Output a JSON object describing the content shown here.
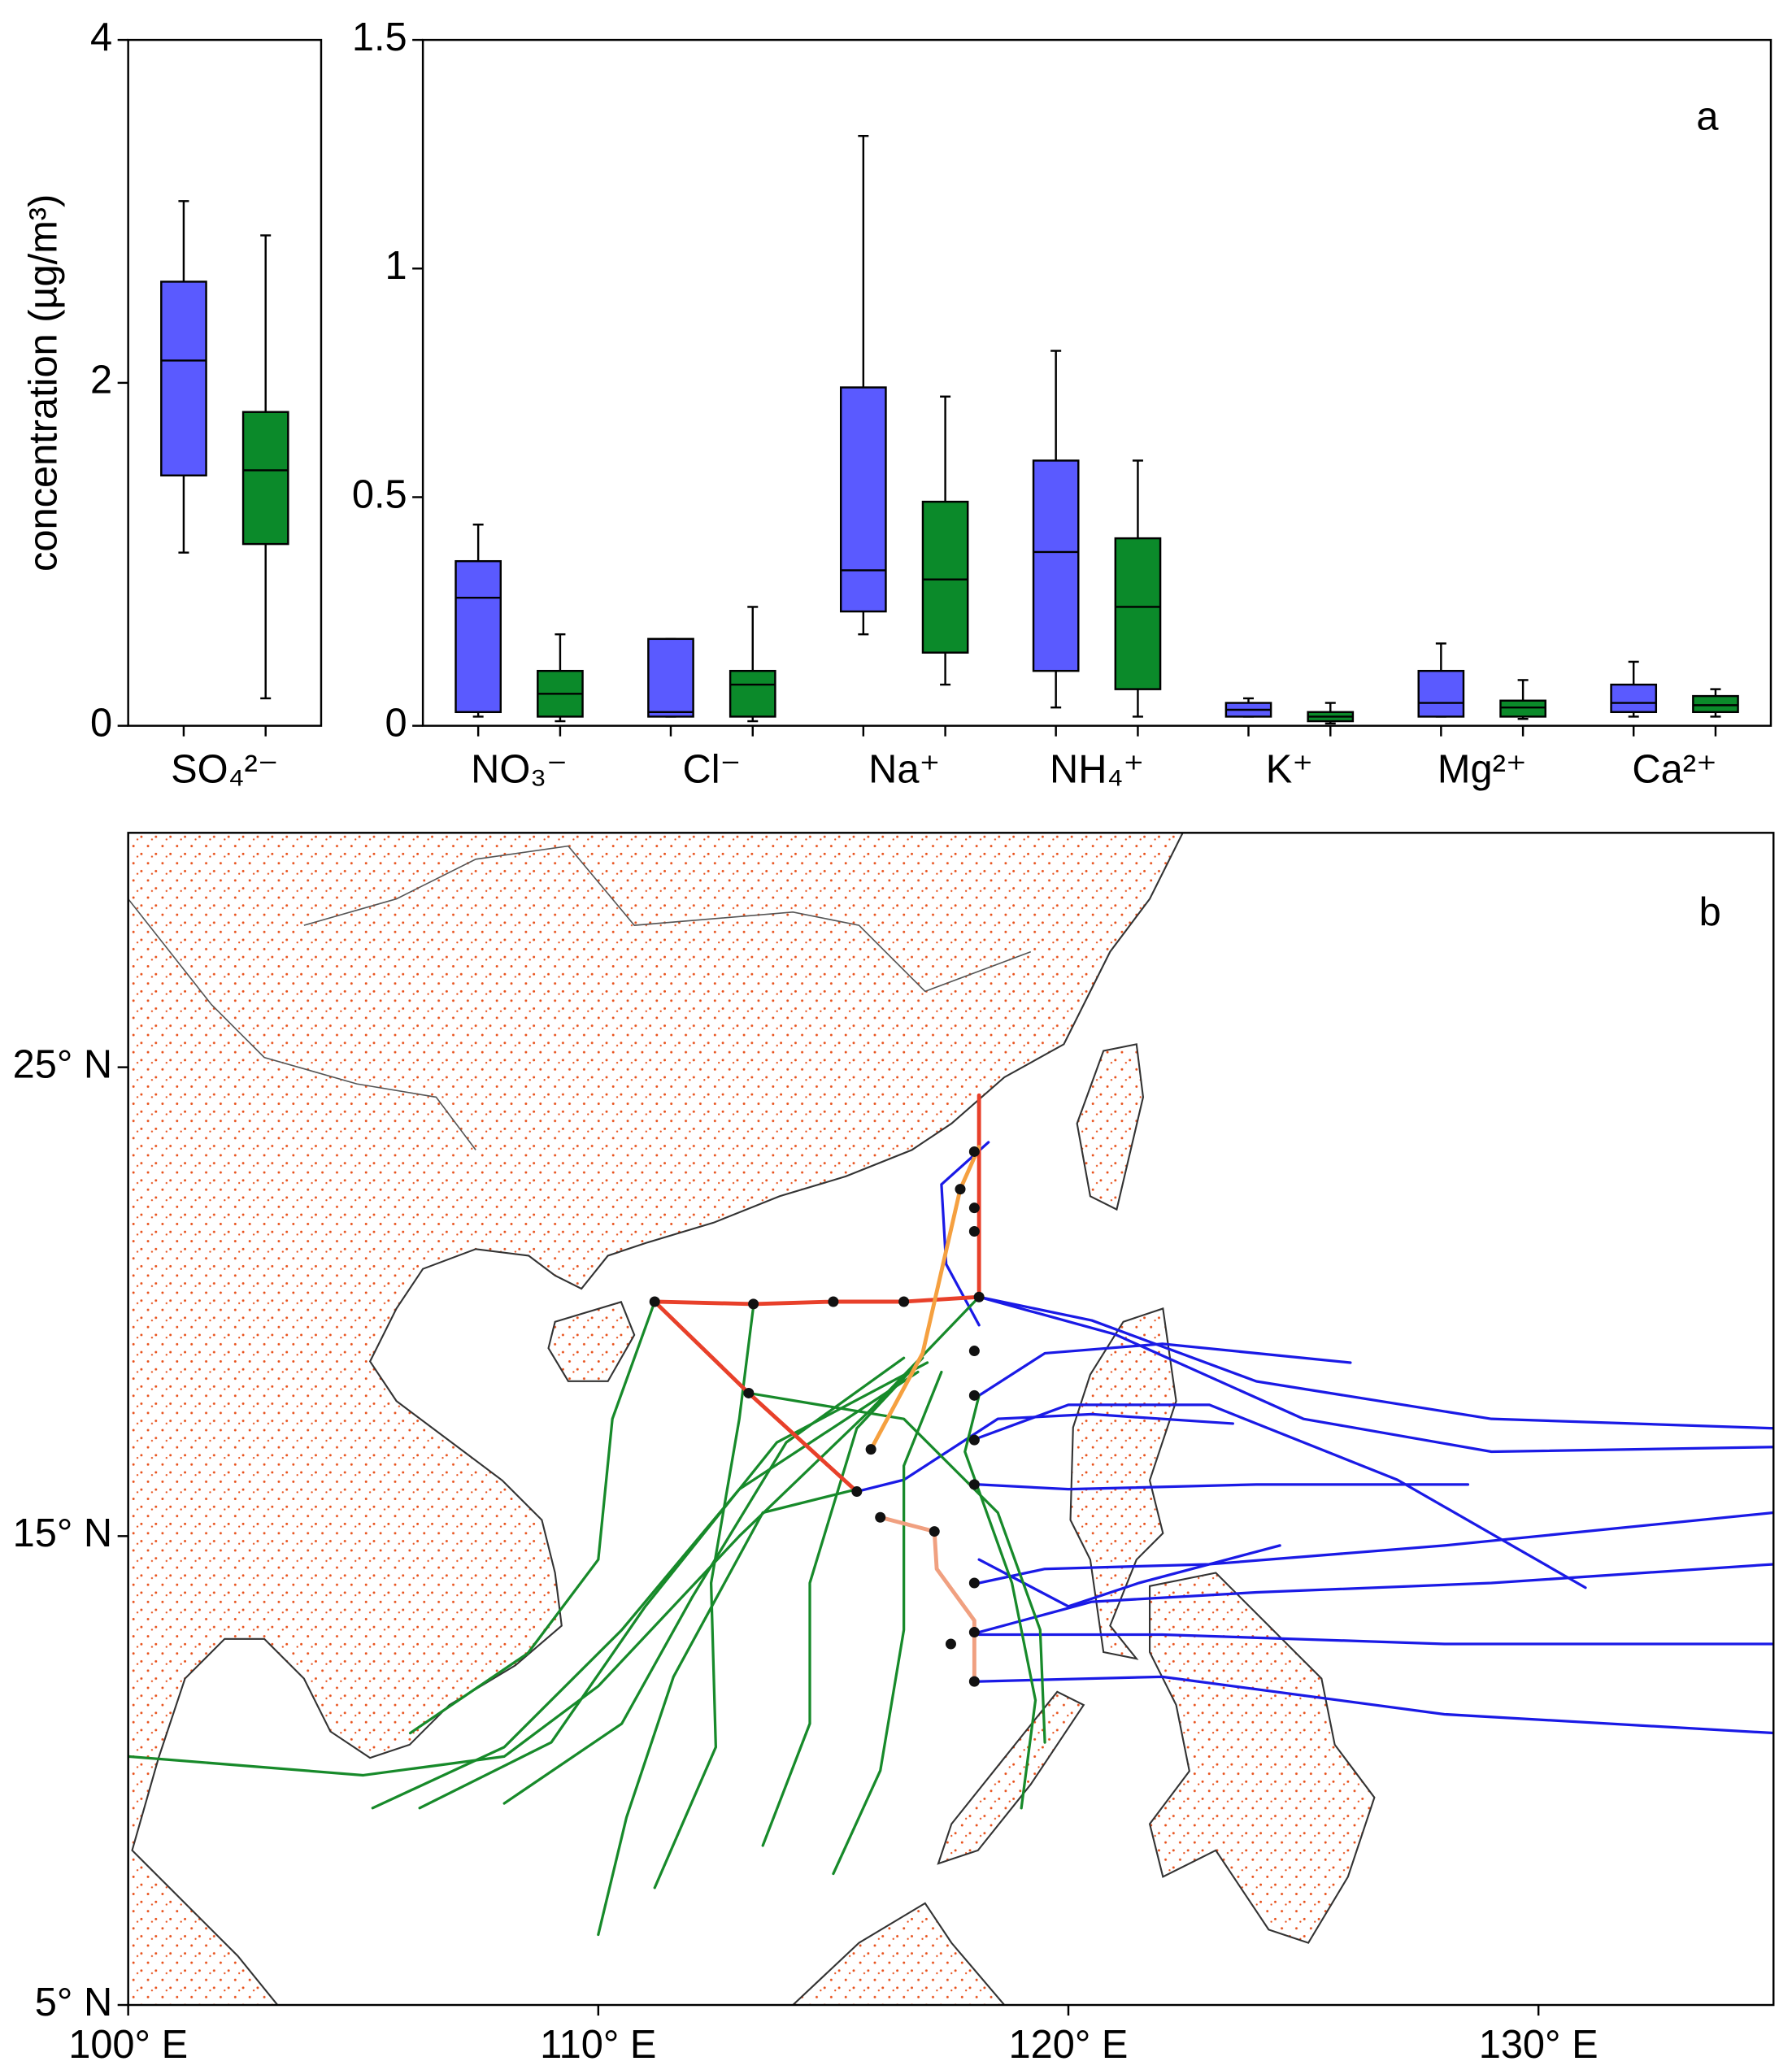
{
  "chart_data": [
    {
      "type": "box",
      "ylabel": "concentration (µg/m³)",
      "categories": [
        "SO₄²⁻"
      ],
      "ylim": [
        0,
        4
      ],
      "yticks": [
        0,
        2,
        4
      ],
      "series": [
        {
          "color": "#5a5aff",
          "stats": [
            [
              1.01,
              1.46,
              2.13,
              2.59,
              3.06
            ]
          ]
        },
        {
          "color": "#0b8a2a",
          "stats": [
            [
              0.16,
              1.06,
              1.49,
              1.83,
              2.86
            ]
          ]
        }
      ]
    },
    {
      "type": "box",
      "label": "a",
      "categories": [
        "NO₃⁻",
        "Cl⁻",
        "Na⁺",
        "NH₄⁺",
        "K⁺",
        "Mg²⁺",
        "Ca²⁺"
      ],
      "ylim": [
        0,
        1.5
      ],
      "yticks": [
        0,
        0.5,
        1,
        1.5
      ],
      "series": [
        {
          "color": "#5a5aff",
          "stats": [
            [
              0.02,
              0.03,
              0.28,
              0.36,
              0.44
            ],
            [
              0.02,
              0.02,
              0.03,
              0.19,
              0.19
            ],
            [
              0.2,
              0.25,
              0.34,
              0.74,
              1.29
            ],
            [
              0.04,
              0.12,
              0.38,
              0.58,
              0.82
            ],
            [
              0.02,
              0.02,
              0.035,
              0.05,
              0.06
            ],
            [
              0.02,
              0.02,
              0.05,
              0.12,
              0.18
            ],
            [
              0.02,
              0.03,
              0.05,
              0.09,
              0.14
            ]
          ]
        },
        {
          "color": "#0b8a2a",
          "stats": [
            [
              0.01,
              0.02,
              0.07,
              0.12,
              0.2
            ],
            [
              0.01,
              0.02,
              0.09,
              0.12,
              0.26
            ],
            [
              0.09,
              0.16,
              0.32,
              0.49,
              0.72
            ],
            [
              0.02,
              0.08,
              0.26,
              0.41,
              0.58
            ],
            [
              0.005,
              0.01,
              0.02,
              0.03,
              0.05
            ],
            [
              0.015,
              0.02,
              0.04,
              0.055,
              0.1
            ],
            [
              0.02,
              0.03,
              0.045,
              0.065,
              0.08
            ]
          ]
        }
      ]
    },
    {
      "type": "map",
      "label": "b",
      "xlim": [
        100,
        135
      ],
      "ylim": [
        5,
        30
      ],
      "xticks": [
        {
          "value": 100,
          "label": "100° E"
        },
        {
          "value": 110,
          "label": "110° E"
        },
        {
          "value": 120,
          "label": "120° E"
        },
        {
          "value": 130,
          "label": "130° E"
        }
      ],
      "yticks": [
        {
          "value": 5,
          "label": "5° N"
        },
        {
          "value": 15,
          "label": "15° N"
        },
        {
          "value": 25,
          "label": "25° N"
        }
      ],
      "trajectories": [
        {
          "color": "#1a1ae6",
          "lines": [
            {
              "lon": [
                135,
                129,
                124,
                120.5,
                118.1
              ],
              "lat": [
                17.3,
                17.5,
                18.3,
                19.6,
                20.1
              ]
            },
            {
              "lon": [
                135,
                129,
                125,
                121,
                118.1
              ],
              "lat": [
                16.9,
                16.8,
                17.5,
                19.3,
                20.1
              ]
            },
            {
              "lon": [
                126,
                122,
                119.5,
                118.1
              ],
              "lat": [
                18.7,
                19.1,
                18.9,
                18.0
              ]
            },
            {
              "lon": [
                131,
                127,
                123,
                120,
                118.1
              ],
              "lat": [
                13.9,
                16.2,
                17.8,
                17.8,
                17.1
              ]
            },
            {
              "lon": [
                128.5,
                124,
                120,
                118.1
              ],
              "lat": [
                16.1,
                16.1,
                16.0,
                16.1
              ]
            },
            {
              "lon": [
                135,
                128,
                123,
                119.5,
                118.1
              ],
              "lat": [
                15.5,
                14.8,
                14.4,
                14.3,
                14.0
              ]
            },
            {
              "lon": [
                135,
                129,
                124,
                120.5,
                118.1
              ],
              "lat": [
                14.4,
                14.0,
                13.8,
                13.6,
                12.95
              ]
            },
            {
              "lon": [
                135,
                128,
                122,
                118.1
              ],
              "lat": [
                12.7,
                12.7,
                12.9,
                12.9
              ]
            },
            {
              "lon": [
                135,
                128,
                122,
                118.1
              ],
              "lat": [
                10.8,
                11.2,
                12.0,
                11.9
              ]
            },
            {
              "lon": [
                124.5,
                121.5,
                120,
                118.1
              ],
              "lat": [
                14.8,
                14.0,
                13.5,
                14.5
              ]
            },
            {
              "lon": [
                118.3,
                117.3,
                117.4,
                118.1
              ],
              "lat": [
                23.4,
                22.5,
                20.8,
                19.5
              ]
            },
            {
              "lon": [
                123.5,
                120.5,
                118.5,
                116.5,
                115.5
              ],
              "lat": [
                17.4,
                17.6,
                17.5,
                16.2,
                15.95
              ]
            }
          ]
        },
        {
          "color": "#178a2a",
          "lines": [
            {
              "lon": [
                100,
                105,
                108,
                110,
                113,
                115.8,
                118.1
              ],
              "lat": [
                10.3,
                9.9,
                10.3,
                11.8,
                15,
                17.7,
                20.1
              ]
            },
            {
              "lon": [
                105.2,
                108,
                110.5,
                113,
                116.8
              ],
              "lat": [
                9.2,
                10.5,
                13,
                16,
                18.5
              ]
            },
            {
              "lon": [
                106.2,
                109,
                111,
                113.8,
                117
              ],
              "lat": [
                9.2,
                10.6,
                13.5,
                17,
                18.7
              ]
            },
            {
              "lon": [
                108,
                110.5,
                112,
                114,
                116.5
              ],
              "lat": [
                9.3,
                11,
                13.7,
                17,
                18.8
              ]
            },
            {
              "lon": [
                113.5,
                114.5,
                114.5,
                115.5,
                116.9
              ],
              "lat": [
                8.4,
                11,
                14,
                17.3,
                18.8
              ]
            },
            {
              "lon": [
                115,
                116,
                116.5,
                116.5,
                117.3
              ],
              "lat": [
                7.8,
                10,
                13,
                16.5,
                18.5
              ]
            },
            {
              "lon": [
                119,
                119.3,
                118.8,
                117.8,
                118.1
              ],
              "lat": [
                9.2,
                11.5,
                14,
                16.8,
                18
              ]
            },
            {
              "lon": [
                119.5,
                119.4,
                118.5,
                116.5,
                113.2
              ],
              "lat": [
                10.6,
                13,
                15.5,
                17.5,
                18.05
              ]
            },
            {
              "lon": [
                106,
                108.5,
                110,
                110.3,
                111.2
              ],
              "lat": [
                10.8,
                12.5,
                14.5,
                17.5,
                20.0
              ]
            },
            {
              "lon": [
                111.2,
                112.5,
                112.4,
                113,
                113.3
              ],
              "lat": [
                7.5,
                10.5,
                14,
                17.5,
                19.9
              ]
            },
            {
              "lon": [
                110,
                110.6,
                111.6,
                113.5,
                115.5
              ],
              "lat": [
                6.5,
                9,
                12,
                15.5,
                16
              ]
            }
          ]
        }
      ],
      "track": [
        {
          "color": "#e8402a",
          "lon": [
            118.1,
            118.1,
            118.1,
            116.5,
            115.0,
            113.3,
            111.2,
            113.2,
            115.5
          ],
          "lat": [
            24.4,
            22.0,
            20.1,
            20.0,
            20.0,
            19.95,
            20.0,
            18.05,
            15.95
          ]
        },
        {
          "color": "#f5a040",
          "lon": [
            115.8,
            116.9,
            117.7,
            118.1
          ],
          "lat": [
            16.85,
            18.9,
            22.4,
            23.3
          ]
        },
        {
          "color": "#f0a080",
          "lon": [
            116.0,
            117.15,
            117.2,
            118.0,
            118.0
          ],
          "lat": [
            15.4,
            15.1,
            14.3,
            13.2,
            11.9
          ]
        }
      ],
      "stations": {
        "lon": [
          118.0,
          117.7,
          118.0,
          118.0,
          118.1,
          116.5,
          115.0,
          113.3,
          111.2,
          113.2,
          115.5,
          115.8,
          116.0,
          117.15,
          118.0,
          118.0,
          118.0,
          118.0,
          118.0,
          118.0,
          117.5,
          118.0
        ],
        "lat": [
          23.2,
          22.4,
          22.0,
          21.5,
          20.1,
          20.0,
          20.0,
          19.95,
          20.0,
          18.05,
          15.95,
          16.85,
          15.4,
          15.1,
          16.1,
          17.05,
          18.0,
          18.95,
          14.0,
          12.95,
          12.7,
          11.9
        ]
      }
    }
  ]
}
